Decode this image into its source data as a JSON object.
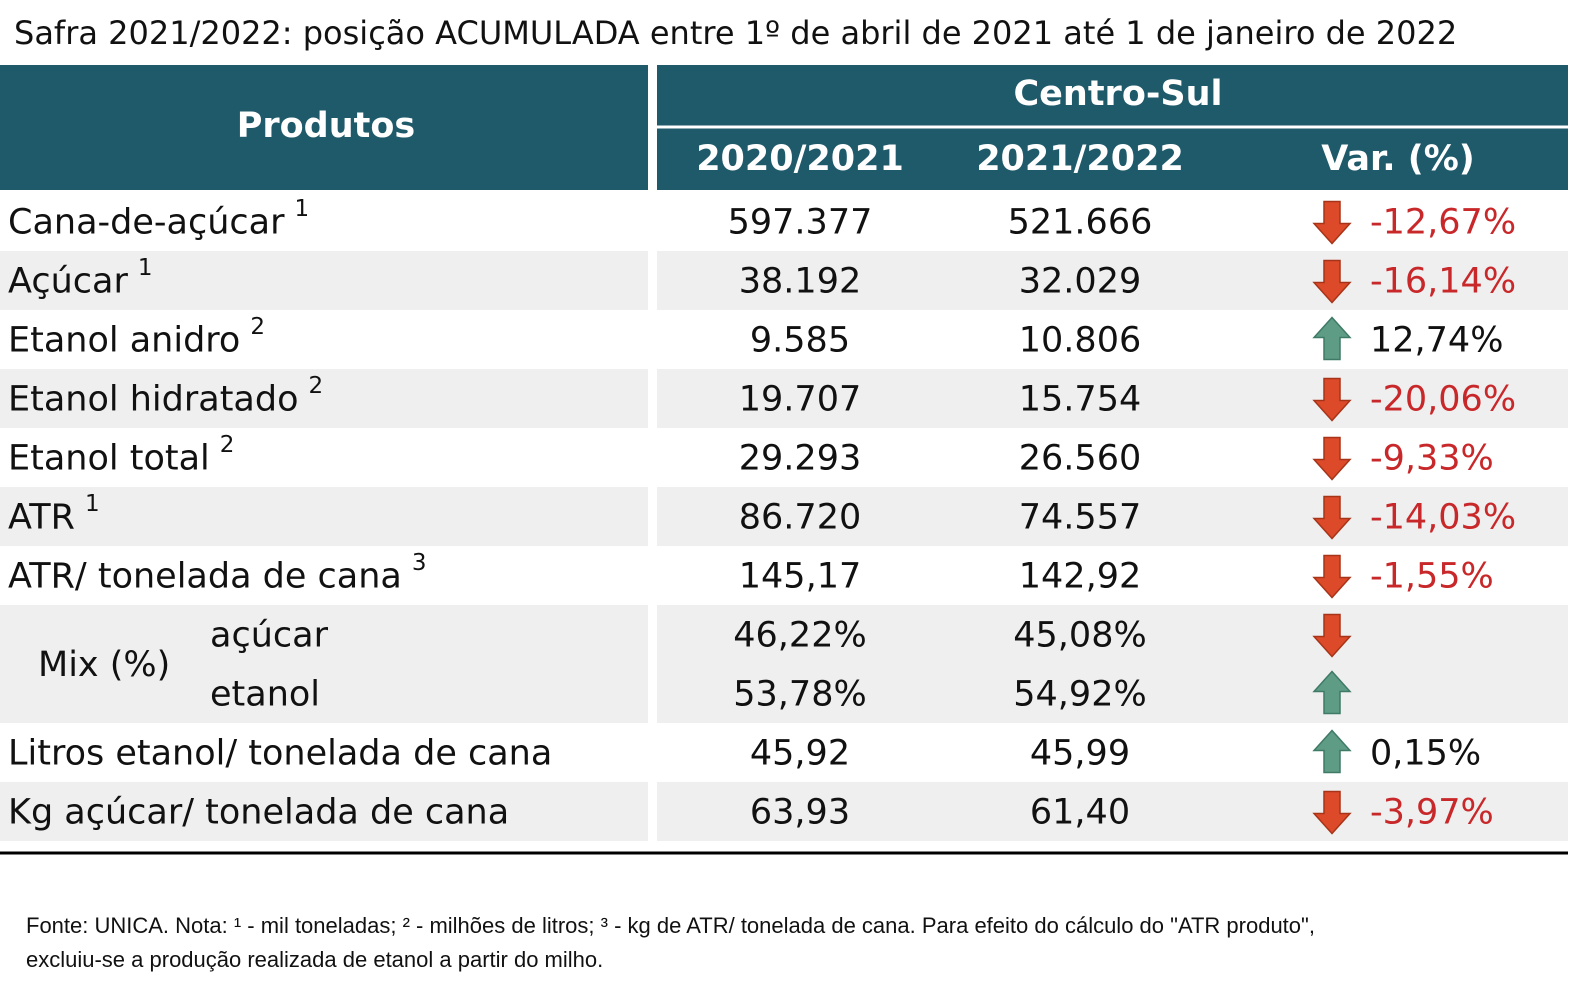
{
  "title": "Safra 2021/2022: posição ACUMULADA entre 1º de abril de 2021 até 1 de janeiro de 2022",
  "table": {
    "header": {
      "products": "Produtos",
      "region": "Centro-Sul",
      "columns": [
        "2020/2021",
        "2021/2022",
        "Var. (%)"
      ]
    },
    "rows": [
      {
        "label": "Cana-de-açúcar",
        "note": "1",
        "values": [
          "597.377",
          "521.666"
        ],
        "var": "-12,67%",
        "trend": "down"
      },
      {
        "label": "Açúcar",
        "note": "1",
        "values": [
          "38.192",
          "32.029"
        ],
        "var": "-16,14%",
        "trend": "down"
      },
      {
        "label": "Etanol anidro",
        "note": "2",
        "values": [
          "9.585",
          "10.806"
        ],
        "var": "12,74%",
        "trend": "up"
      },
      {
        "label": "Etanol hidratado",
        "note": "2",
        "values": [
          "19.707",
          "15.754"
        ],
        "var": "-20,06%",
        "trend": "down"
      },
      {
        "label": "Etanol total",
        "note": "2",
        "values": [
          "29.293",
          "26.560"
        ],
        "var": "-9,33%",
        "trend": "down"
      },
      {
        "label": "ATR",
        "note": "1",
        "values": [
          "86.720",
          "74.557"
        ],
        "var": "-14,03%",
        "trend": "down"
      },
      {
        "label": "ATR/ tonelada de cana",
        "note": "3",
        "values": [
          "145,17",
          "142,92"
        ],
        "var": "-1,55%",
        "trend": "down"
      },
      {
        "label": "Mix (%)",
        "parts": [
          {
            "label": "açúcar",
            "values": [
              "46,22%",
              "45,08%"
            ],
            "trend": "down"
          },
          {
            "label": "etanol",
            "values": [
              "53,78%",
              "54,92%"
            ],
            "trend": "up"
          }
        ]
      },
      {
        "label": "Litros etanol/ tonelada de cana",
        "values": [
          "45,92",
          "45,99"
        ],
        "var": "0,15%",
        "trend": "up"
      },
      {
        "label": "Kg açúcar/ tonelada de cana",
        "values": [
          "63,93",
          "61,40"
        ],
        "var": "-3,97%",
        "trend": "down"
      }
    ]
  },
  "footnote": [
    "Fonte: UNICA. Nota: ¹ - mil toneladas; ² - milhões de litros; ³ - kg de ATR/ tonelada de cana. Para efeito do cálculo do \"ATR produto\",",
    "excluiu-se a produção realizada de etanol a partir do milho."
  ]
}
